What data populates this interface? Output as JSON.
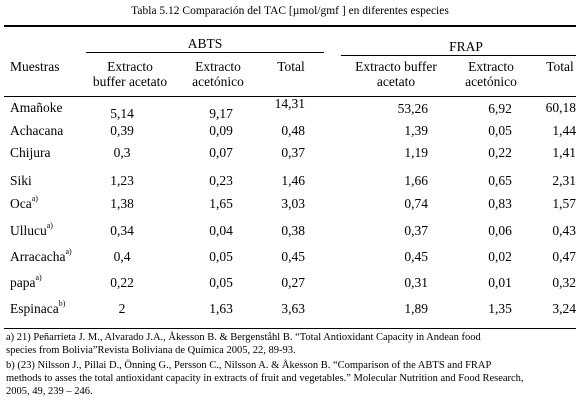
{
  "caption": "Tabla 5.12  Comparación del TAC  [µmol/gmf ] en diferentes especies",
  "headers": {
    "muestras": "Muestras",
    "abts": "ABTS",
    "frap": "FRAP",
    "abts_buffer_1": "Extracto",
    "abts_buffer_2": "buffer acetato",
    "abts_acet_1": "Extracto",
    "abts_acet_2": "acetónico",
    "abts_total": "Total",
    "frap_buffer_1": "Extracto buffer",
    "frap_buffer_2": "acetato",
    "frap_acet_1": "Extracto",
    "frap_acet_2": "acetónico",
    "frap_total": "Total"
  },
  "rows": [
    {
      "name": "Amañoke",
      "sup": "",
      "v": [
        "5,14",
        "9,17",
        "14,31",
        "53,26",
        "6,92",
        "60,18"
      ]
    },
    {
      "name": "Achacana",
      "sup": "",
      "v": [
        "0,39",
        "0,09",
        "0,48",
        "1,39",
        "0,05",
        "1,44"
      ]
    },
    {
      "name": "Chijura",
      "sup": "",
      "v": [
        "0,3",
        "0,07",
        "0,37",
        "1,19",
        "0,22",
        "1,41"
      ]
    },
    {
      "name": "Siki",
      "sup": "",
      "v": [
        "1,23",
        "0,23",
        "1,46",
        "1,66",
        "0,65",
        "2,31"
      ]
    },
    {
      "name": "Oca",
      "sup": "a)",
      "v": [
        "1,38",
        "1,65",
        "3,03",
        "0,74",
        "0,83",
        "1,57"
      ]
    },
    {
      "name": "Ullucu",
      "sup": "a)",
      "v": [
        "0,34",
        "0,04",
        "0,38",
        "0,37",
        "0,06",
        "0,43"
      ]
    },
    {
      "name": "Arracacha",
      "sup": "a)",
      "v": [
        "0,4",
        "0,05",
        "0,45",
        "0,45",
        "0,02",
        "0,47"
      ]
    },
    {
      "name": "papa",
      "sup": "a)",
      "v": [
        "0,22",
        "0,05",
        "0,27",
        "0,31",
        "0,01",
        "0,32"
      ]
    },
    {
      "name": "Espinaca",
      "sup": "b)",
      "v": [
        "2",
        "1,63",
        "3,63",
        "1,89",
        "1,35",
        "3,24"
      ]
    }
  ],
  "footnotes": {
    "a_line1": "a)      21) Peñarrieta  J. M., Alvarado J.A., Åkesson B. & Bergenståhl B. “Total Antioxidant Capacity in Andean food",
    "a_line2": "species from Bolivia”Revista Boliviana de Química 2005, 22, 89-93.",
    "b_line1": "b)      (23) Nilsson J., Pillai D., Önning G., Persson C., Nilsson A. & Åkesson B. “Comparison of the ABTS and FRAP",
    "b_line2": "methods to asses the total antioxidant capacity in extracts of fruit and vegetables.” Molecular Nutrition and Food Research,",
    "b_line3": "2005, 49, 239 – 246."
  }
}
